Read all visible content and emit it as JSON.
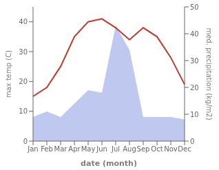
{
  "chart_data": {
    "type": "line",
    "categories": [
      "Jan",
      "Feb",
      "Mar",
      "Apr",
      "May",
      "Jun",
      "Jul",
      "Aug",
      "Sep",
      "Oct",
      "Nov",
      "Dec"
    ],
    "x_label": "date (month)",
    "y_label": "max temp (C)",
    "y2_label": "med. precipitation (kg/m2)",
    "series": [
      {
        "type": "area",
        "axis": "y2",
        "color": "#bfc9f0",
        "values": [
          9,
          11,
          9,
          14,
          19,
          18,
          43,
          34,
          9,
          9,
          9,
          8
        ]
      },
      {
        "type": "line",
        "color": "#c0392b",
        "values": [
          15,
          18,
          25,
          35,
          40,
          41,
          38,
          34,
          38,
          35,
          28,
          19
        ]
      }
    ],
    "ylim": [
      0,
      45
    ],
    "yticks": [
      0,
      10,
      20,
      30,
      40
    ],
    "y2lim": [
      0,
      50
    ],
    "y2ticks": [
      0,
      10,
      20,
      30,
      40,
      50
    ],
    "grid": false
  }
}
